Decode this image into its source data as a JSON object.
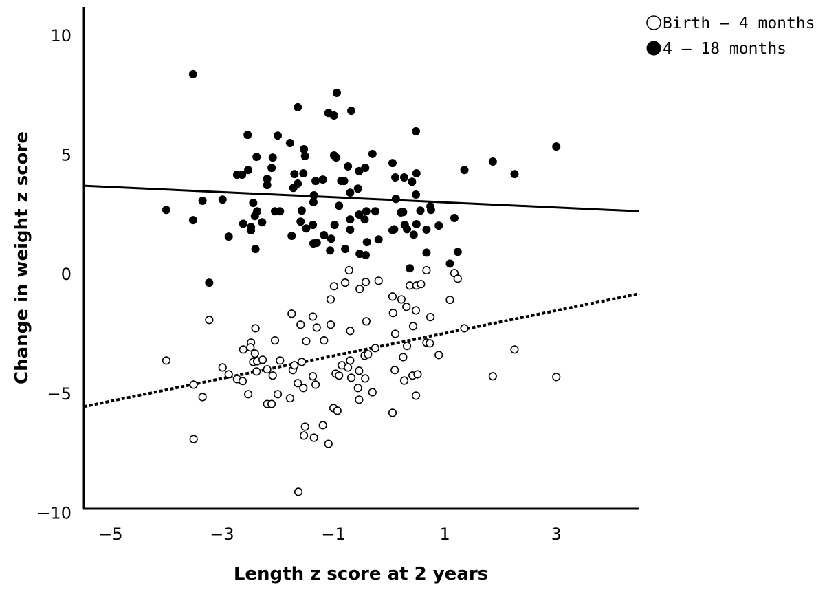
{
  "chart_data": {
    "type": "scatter",
    "title": "",
    "xlabel": "Length z score at 2 years",
    "ylabel": "Change in weight z score",
    "xlim": [
      -5.48,
      4.49
    ],
    "ylim": [
      -9.87,
      11.15
    ],
    "xticks": [
      -5,
      -3,
      -1,
      1,
      3
    ],
    "yticks": [
      10,
      5,
      0,
      -5,
      -10
    ],
    "grid": false,
    "legend_placement": "top-right",
    "series": [
      {
        "name": "Birth – 4 months",
        "marker": "open-circle",
        "color": "#000000",
        "fit_line": {
          "style": "dotted",
          "x": [
            -5.48,
            4.49
          ],
          "y": [
            -5.59,
            -0.86
          ]
        },
        "points": [
          [
            -3.23,
            -1.96
          ],
          [
            -2.4,
            -2.31
          ],
          [
            -2.05,
            -2.82
          ],
          [
            -1.75,
            -1.7
          ],
          [
            -1.59,
            -2.16
          ],
          [
            -1.37,
            -1.82
          ],
          [
            -1.3,
            -2.28
          ],
          [
            -1.05,
            -1.1
          ],
          [
            -0.99,
            -0.55
          ],
          [
            -1.05,
            -2.16
          ],
          [
            -1.49,
            -2.85
          ],
          [
            -1.17,
            -2.82
          ],
          [
            -4.0,
            -3.66
          ],
          [
            -2.48,
            -2.91
          ],
          [
            -2.49,
            -3.11
          ],
          [
            -2.62,
            -3.2
          ],
          [
            -2.41,
            -3.37
          ],
          [
            -2.44,
            -3.72
          ],
          [
            -2.37,
            -3.69
          ],
          [
            -2.27,
            -3.63
          ],
          [
            -1.96,
            -3.66
          ],
          [
            -2.99,
            -3.95
          ],
          [
            -2.88,
            -4.24
          ],
          [
            -2.73,
            -4.44
          ],
          [
            -2.63,
            -4.52
          ],
          [
            -2.38,
            -4.12
          ],
          [
            -2.19,
            -4.03
          ],
          [
            -2.09,
            -4.29
          ],
          [
            -1.73,
            -4.06
          ],
          [
            -1.7,
            -3.86
          ],
          [
            -1.57,
            -3.72
          ],
          [
            -1.37,
            -4.32
          ],
          [
            -1.64,
            -4.61
          ],
          [
            -1.54,
            -4.81
          ],
          [
            -1.32,
            -4.67
          ],
          [
            -0.96,
            -4.21
          ],
          [
            -3.51,
            -4.67
          ],
          [
            -3.35,
            -5.19
          ],
          [
            -2.53,
            -5.07
          ],
          [
            -2.0,
            -5.07
          ],
          [
            -2.19,
            -5.48
          ],
          [
            -2.11,
            -5.48
          ],
          [
            -1.78,
            -5.24
          ],
          [
            -1.0,
            -5.65
          ],
          [
            -0.93,
            -5.76
          ],
          [
            -1.51,
            -6.43
          ],
          [
            -1.19,
            -6.37
          ],
          [
            -1.53,
            -6.8
          ],
          [
            -1.35,
            -6.89
          ],
          [
            -1.09,
            -7.15
          ],
          [
            -3.51,
            -6.95
          ],
          [
            -1.63,
            -9.16
          ],
          [
            -0.72,
            0.12
          ],
          [
            0.67,
            0.12
          ],
          [
            1.17,
            0.0
          ],
          [
            1.23,
            -0.23
          ],
          [
            -0.79,
            -0.4
          ],
          [
            -0.42,
            -0.37
          ],
          [
            -0.53,
            -0.66
          ],
          [
            -0.19,
            -0.32
          ],
          [
            0.37,
            -0.52
          ],
          [
            0.49,
            -0.52
          ],
          [
            0.57,
            -0.46
          ],
          [
            0.06,
            -0.98
          ],
          [
            0.22,
            -1.1
          ],
          [
            0.31,
            -1.41
          ],
          [
            0.48,
            -1.56
          ],
          [
            1.09,
            -1.12
          ],
          [
            0.07,
            -1.67
          ],
          [
            0.74,
            -1.84
          ],
          [
            -0.41,
            -2.02
          ],
          [
            -0.7,
            -2.42
          ],
          [
            0.43,
            -2.22
          ],
          [
            0.11,
            -2.54
          ],
          [
            1.35,
            -2.31
          ],
          [
            0.32,
            -3.05
          ],
          [
            0.67,
            -2.91
          ],
          [
            0.73,
            -2.94
          ],
          [
            -0.25,
            -3.14
          ],
          [
            -0.44,
            -3.46
          ],
          [
            -0.38,
            -3.4
          ],
          [
            0.25,
            -3.52
          ],
          [
            0.89,
            -3.43
          ],
          [
            2.25,
            -3.2
          ],
          [
            -0.7,
            -3.66
          ],
          [
            -0.85,
            -3.86
          ],
          [
            -0.74,
            -3.95
          ],
          [
            -0.9,
            -4.29
          ],
          [
            -0.54,
            -4.09
          ],
          [
            -0.68,
            -4.38
          ],
          [
            -0.43,
            -4.41
          ],
          [
            0.1,
            -4.06
          ],
          [
            0.42,
            -4.29
          ],
          [
            0.51,
            -4.24
          ],
          [
            0.27,
            -4.5
          ],
          [
            1.86,
            -4.32
          ],
          [
            3.0,
            -4.35
          ],
          [
            -0.56,
            -4.81
          ],
          [
            -0.3,
            -4.99
          ],
          [
            -0.54,
            -5.3
          ],
          [
            0.48,
            -5.13
          ],
          [
            0.06,
            -5.85
          ]
        ]
      },
      {
        "name": "4 – 18 months",
        "marker": "filled-circle",
        "color": "#000000",
        "fit_line": {
          "style": "solid",
          "x": [
            -5.48,
            4.49
          ],
          "y": [
            3.66,
            2.59
          ]
        },
        "points": [
          [
            -3.52,
            8.33
          ],
          [
            -0.94,
            7.55
          ],
          [
            -1.64,
            6.95
          ],
          [
            -1.09,
            6.71
          ],
          [
            -0.99,
            6.6
          ],
          [
            -0.68,
            6.8
          ],
          [
            -2.54,
            5.79
          ],
          [
            -2.0,
            5.76
          ],
          [
            -1.78,
            5.45
          ],
          [
            -1.53,
            5.19
          ],
          [
            -1.51,
            4.9
          ],
          [
            -0.99,
            4.93
          ],
          [
            -0.95,
            4.84
          ],
          [
            -2.38,
            4.87
          ],
          [
            -2.09,
            4.84
          ],
          [
            -2.11,
            4.41
          ],
          [
            -2.53,
            4.32
          ],
          [
            -2.64,
            4.12
          ],
          [
            -2.73,
            4.12
          ],
          [
            -0.74,
            4.47
          ],
          [
            -1.7,
            4.15
          ],
          [
            -1.54,
            4.18
          ],
          [
            -2.19,
            3.95
          ],
          [
            -2.19,
            3.69
          ],
          [
            -1.64,
            3.75
          ],
          [
            -1.72,
            3.57
          ],
          [
            -1.32,
            3.86
          ],
          [
            -1.19,
            3.92
          ],
          [
            -0.86,
            3.86
          ],
          [
            -0.7,
            3.37
          ],
          [
            -1.35,
            3.26
          ],
          [
            -1.36,
            2.97
          ],
          [
            -3.35,
            3.03
          ],
          [
            -2.99,
            3.08
          ],
          [
            -4.0,
            2.65
          ],
          [
            -2.44,
            2.94
          ],
          [
            -2.37,
            2.59
          ],
          [
            -2.41,
            2.39
          ],
          [
            -2.05,
            2.59
          ],
          [
            -1.96,
            2.59
          ],
          [
            -1.57,
            2.62
          ],
          [
            -0.9,
            2.82
          ],
          [
            -0.7,
            2.25
          ],
          [
            -3.52,
            2.22
          ],
          [
            -2.62,
            2.07
          ],
          [
            -2.28,
            2.13
          ],
          [
            -2.48,
            1.93
          ],
          [
            -2.48,
            1.79
          ],
          [
            -1.59,
            2.16
          ],
          [
            -1.49,
            1.87
          ],
          [
            -1.37,
            2.02
          ],
          [
            -0.98,
            2.02
          ],
          [
            -0.7,
            1.82
          ],
          [
            -2.88,
            1.53
          ],
          [
            -1.75,
            1.56
          ],
          [
            -1.17,
            1.59
          ],
          [
            -1.04,
            1.44
          ],
          [
            -1.36,
            1.24
          ],
          [
            -1.3,
            1.27
          ],
          [
            -1.06,
            0.95
          ],
          [
            -0.79,
            1.01
          ],
          [
            -2.4,
            1.01
          ],
          [
            -3.23,
            -0.4
          ],
          [
            0.48,
            5.94
          ],
          [
            3.0,
            5.3
          ],
          [
            -0.3,
            4.99
          ],
          [
            1.86,
            4.67
          ],
          [
            0.06,
            4.61
          ],
          [
            -0.54,
            4.27
          ],
          [
            -0.43,
            4.41
          ],
          [
            1.35,
            4.32
          ],
          [
            2.25,
            4.15
          ],
          [
            0.11,
            4.01
          ],
          [
            0.27,
            4.01
          ],
          [
            0.41,
            3.83
          ],
          [
            0.49,
            4.18
          ],
          [
            -0.56,
            3.54
          ],
          [
            0.12,
            3.11
          ],
          [
            0.48,
            3.29
          ],
          [
            0.74,
            2.8
          ],
          [
            0.75,
            2.65
          ],
          [
            -0.41,
            2.59
          ],
          [
            -0.54,
            2.45
          ],
          [
            -0.44,
            2.25
          ],
          [
            -0.25,
            2.59
          ],
          [
            0.21,
            2.54
          ],
          [
            0.25,
            2.56
          ],
          [
            0.56,
            2.62
          ],
          [
            1.17,
            2.31
          ],
          [
            0.06,
            1.79
          ],
          [
            0.09,
            1.84
          ],
          [
            0.28,
            2.02
          ],
          [
            0.32,
            1.84
          ],
          [
            0.49,
            2.05
          ],
          [
            0.44,
            1.61
          ],
          [
            0.67,
            1.82
          ],
          [
            0.89,
            1.99
          ],
          [
            -0.19,
            1.41
          ],
          [
            -0.4,
            1.3
          ],
          [
            -0.53,
            0.81
          ],
          [
            -0.42,
            0.75
          ],
          [
            0.67,
            0.86
          ],
          [
            1.23,
            0.89
          ],
          [
            1.09,
            0.4
          ],
          [
            0.37,
            0.2
          ],
          [
            -0.81,
            3.86
          ]
        ]
      }
    ]
  }
}
